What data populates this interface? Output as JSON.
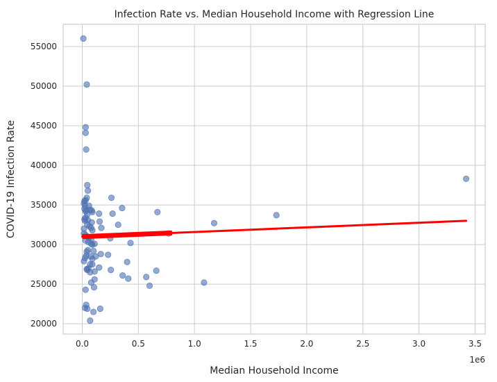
{
  "chart_data": {
    "type": "scatter",
    "title": "Infection Rate vs. Median Household Income with Regression Line",
    "xlabel": "Median Household Income",
    "ylabel": "COVID-19 Infection Rate",
    "x_offset_label": "1e6",
    "xlim": [
      -0.17,
      3.59
    ],
    "ylim": [
      18700,
      57800
    ],
    "x_ticks": [
      0.0,
      0.5,
      1.0,
      1.5,
      2.0,
      2.5,
      3.0,
      3.5
    ],
    "x_tick_labels": [
      "0.0",
      "0.5",
      "1.0",
      "1.5",
      "2.0",
      "2.5",
      "3.0",
      "3.5"
    ],
    "y_ticks": [
      20000,
      25000,
      30000,
      35000,
      40000,
      45000,
      50000,
      55000
    ],
    "y_tick_labels": [
      "20000",
      "25000",
      "30000",
      "35000",
      "40000",
      "45000",
      "50000",
      "55000"
    ],
    "grid": true,
    "colors": {
      "points": "#4c72b0",
      "regression": "#ff0000",
      "grid": "#cccccc",
      "axes": "#cccccc"
    },
    "series": [
      {
        "kind": "scatter",
        "points": [
          [
            0.01,
            56000
          ],
          [
            0.04,
            50200
          ],
          [
            0.03,
            44800
          ],
          [
            0.03,
            44100
          ],
          [
            0.035,
            42000
          ],
          [
            0.045,
            37500
          ],
          [
            0.05,
            36800
          ],
          [
            0.04,
            35900
          ],
          [
            0.02,
            35500
          ],
          [
            0.03,
            35600
          ],
          [
            0.015,
            35200
          ],
          [
            0.025,
            34900
          ],
          [
            0.02,
            34500
          ],
          [
            0.035,
            34300
          ],
          [
            0.06,
            34900
          ],
          [
            0.07,
            34400
          ],
          [
            0.085,
            34300
          ],
          [
            0.09,
            34100
          ],
          [
            0.03,
            34200
          ],
          [
            0.045,
            33800
          ],
          [
            0.03,
            33400
          ],
          [
            0.02,
            33200
          ],
          [
            0.025,
            33000
          ],
          [
            0.05,
            33100
          ],
          [
            0.085,
            32800
          ],
          [
            0.045,
            32500
          ],
          [
            0.015,
            32000
          ],
          [
            0.065,
            32300
          ],
          [
            0.08,
            32100
          ],
          [
            0.09,
            31800
          ],
          [
            0.015,
            31400
          ],
          [
            0.03,
            31200
          ],
          [
            0.045,
            31000
          ],
          [
            0.06,
            30900
          ],
          [
            0.08,
            30700
          ],
          [
            0.03,
            30500
          ],
          [
            0.055,
            30300
          ],
          [
            0.08,
            30100
          ],
          [
            0.11,
            30100
          ],
          [
            0.09,
            30000
          ],
          [
            0.015,
            27900
          ],
          [
            0.025,
            28300
          ],
          [
            0.035,
            28600
          ],
          [
            0.04,
            29100
          ],
          [
            0.05,
            29300
          ],
          [
            0.075,
            28500
          ],
          [
            0.09,
            28200
          ],
          [
            0.1,
            29200
          ],
          [
            0.12,
            28500
          ],
          [
            0.07,
            27500
          ],
          [
            0.09,
            27500
          ],
          [
            0.04,
            26900
          ],
          [
            0.045,
            26800
          ],
          [
            0.055,
            27000
          ],
          [
            0.07,
            26500
          ],
          [
            0.11,
            26600
          ],
          [
            0.08,
            25200
          ],
          [
            0.105,
            24600
          ],
          [
            0.11,
            25600
          ],
          [
            0.03,
            24300
          ],
          [
            0.035,
            22400
          ],
          [
            0.025,
            22000
          ],
          [
            0.045,
            21900
          ],
          [
            0.1,
            21500
          ],
          [
            0.07,
            20400
          ],
          [
            0.16,
            21900
          ],
          [
            0.15,
            33900
          ],
          [
            0.155,
            32900
          ],
          [
            0.17,
            32100
          ],
          [
            0.15,
            27100
          ],
          [
            0.165,
            28800
          ],
          [
            0.23,
            28700
          ],
          [
            0.25,
            30800
          ],
          [
            0.26,
            35900
          ],
          [
            0.27,
            33900
          ],
          [
            0.32,
            32500
          ],
          [
            0.355,
            34600
          ],
          [
            0.36,
            26100
          ],
          [
            0.255,
            26800
          ],
          [
            0.4,
            27800
          ],
          [
            0.41,
            25700
          ],
          [
            0.43,
            30200
          ],
          [
            0.57,
            25900
          ],
          [
            0.6,
            24800
          ],
          [
            0.66,
            26700
          ],
          [
            0.67,
            34100
          ],
          [
            0.77,
            31400
          ],
          [
            1.085,
            25200
          ],
          [
            1.175,
            32700
          ],
          [
            1.73,
            33700
          ],
          [
            3.42,
            38300
          ]
        ]
      },
      {
        "kind": "regression",
        "points": [
          [
            0.0,
            31000
          ],
          [
            3.42,
            33000
          ]
        ]
      }
    ]
  }
}
